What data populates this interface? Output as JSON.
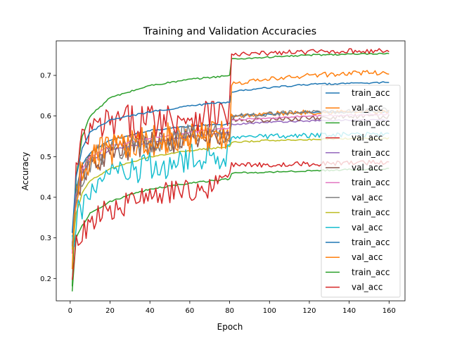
{
  "chart_data": {
    "type": "line",
    "title": "Training and Validation Accuracies",
    "xlabel": "Epoch",
    "ylabel": "Accuracy",
    "xlim": [
      -7,
      168
    ],
    "ylim": [
      0.145,
      0.785
    ],
    "xticks": [
      0,
      20,
      40,
      60,
      80,
      100,
      120,
      140,
      160
    ],
    "yticks": [
      0.2,
      0.3,
      0.4,
      0.5,
      0.6,
      0.7
    ],
    "ytick_labels": [
      "0.2",
      "0.3",
      "0.4",
      "0.5",
      "0.6",
      "0.7"
    ],
    "grid": false,
    "legend_position": "right",
    "series": [
      {
        "name": "train_acc",
        "color": "#1f77b4",
        "noise": 0.002,
        "anchors": [
          [
            1,
            0.27
          ],
          [
            3,
            0.42
          ],
          [
            6,
            0.48
          ],
          [
            10,
            0.51
          ],
          [
            20,
            0.54
          ],
          [
            40,
            0.565
          ],
          [
            60,
            0.575
          ],
          [
            80,
            0.58
          ],
          [
            81,
            0.6
          ],
          [
            100,
            0.605
          ],
          [
            120,
            0.61
          ],
          [
            140,
            0.61
          ],
          [
            160,
            0.61
          ]
        ]
      },
      {
        "name": "val_acc",
        "color": "#ff7f0e",
        "noise": 0.035,
        "anchors": [
          [
            1,
            0.27
          ],
          [
            3,
            0.4
          ],
          [
            6,
            0.46
          ],
          [
            10,
            0.49
          ],
          [
            20,
            0.52
          ],
          [
            40,
            0.535
          ],
          [
            60,
            0.55
          ],
          [
            80,
            0.56
          ],
          [
            81,
            0.6
          ],
          [
            100,
            0.605
          ],
          [
            120,
            0.61
          ],
          [
            140,
            0.61
          ],
          [
            160,
            0.61
          ]
        ]
      },
      {
        "name": "train_acc",
        "color": "#2ca02c",
        "noise": 0.002,
        "anchors": [
          [
            1,
            0.18
          ],
          [
            3,
            0.45
          ],
          [
            6,
            0.55
          ],
          [
            10,
            0.6
          ],
          [
            20,
            0.645
          ],
          [
            40,
            0.675
          ],
          [
            60,
            0.69
          ],
          [
            80,
            0.7
          ],
          [
            81,
            0.74
          ],
          [
            100,
            0.745
          ],
          [
            120,
            0.75
          ],
          [
            140,
            0.752
          ],
          [
            160,
            0.753
          ]
        ]
      },
      {
        "name": "val_acc",
        "color": "#d62728",
        "noise": 0.045,
        "anchors": [
          [
            1,
            0.26
          ],
          [
            3,
            0.46
          ],
          [
            6,
            0.53
          ],
          [
            10,
            0.56
          ],
          [
            20,
            0.58
          ],
          [
            40,
            0.59
          ],
          [
            60,
            0.6
          ],
          [
            80,
            0.61
          ],
          [
            81,
            0.75
          ],
          [
            100,
            0.755
          ],
          [
            120,
            0.758
          ],
          [
            140,
            0.76
          ],
          [
            160,
            0.76
          ]
        ]
      },
      {
        "name": "train_acc",
        "color": "#9467bd",
        "noise": 0.002,
        "anchors": [
          [
            1,
            0.26
          ],
          [
            3,
            0.4
          ],
          [
            6,
            0.46
          ],
          [
            10,
            0.49
          ],
          [
            20,
            0.515
          ],
          [
            40,
            0.535
          ],
          [
            60,
            0.55
          ],
          [
            80,
            0.56
          ],
          [
            81,
            0.58
          ],
          [
            100,
            0.585
          ],
          [
            120,
            0.588
          ],
          [
            140,
            0.59
          ],
          [
            160,
            0.59
          ]
        ]
      },
      {
        "name": "val_acc",
        "color": "#8c564b",
        "noise": 0.03,
        "anchors": [
          [
            1,
            0.26
          ],
          [
            3,
            0.39
          ],
          [
            6,
            0.45
          ],
          [
            10,
            0.48
          ],
          [
            20,
            0.505
          ],
          [
            40,
            0.53
          ],
          [
            60,
            0.545
          ],
          [
            80,
            0.55
          ],
          [
            81,
            0.59
          ],
          [
            100,
            0.59
          ],
          [
            120,
            0.595
          ],
          [
            140,
            0.598
          ],
          [
            160,
            0.6
          ]
        ]
      },
      {
        "name": "train_acc",
        "color": "#e377c2",
        "noise": 0.002,
        "anchors": [
          [
            1,
            0.26
          ],
          [
            3,
            0.41
          ],
          [
            6,
            0.47
          ],
          [
            10,
            0.5
          ],
          [
            20,
            0.525
          ],
          [
            40,
            0.545
          ],
          [
            60,
            0.56
          ],
          [
            80,
            0.57
          ],
          [
            81,
            0.59
          ],
          [
            100,
            0.595
          ],
          [
            120,
            0.6
          ],
          [
            140,
            0.602
          ],
          [
            160,
            0.605
          ]
        ]
      },
      {
        "name": "val_acc",
        "color": "#7f7f7f",
        "noise": 0.03,
        "anchors": [
          [
            1,
            0.26
          ],
          [
            3,
            0.4
          ],
          [
            6,
            0.455
          ],
          [
            10,
            0.49
          ],
          [
            20,
            0.515
          ],
          [
            40,
            0.535
          ],
          [
            60,
            0.55
          ],
          [
            80,
            0.56
          ],
          [
            81,
            0.6
          ],
          [
            100,
            0.605
          ],
          [
            120,
            0.61
          ],
          [
            140,
            0.612
          ],
          [
            160,
            0.615
          ]
        ]
      },
      {
        "name": "train_acc",
        "color": "#bcbd22",
        "noise": 0.002,
        "anchors": [
          [
            1,
            0.27
          ],
          [
            3,
            0.36
          ],
          [
            6,
            0.41
          ],
          [
            10,
            0.44
          ],
          [
            20,
            0.47
          ],
          [
            40,
            0.5
          ],
          [
            60,
            0.515
          ],
          [
            80,
            0.525
          ],
          [
            81,
            0.535
          ],
          [
            100,
            0.54
          ],
          [
            120,
            0.542
          ],
          [
            140,
            0.545
          ],
          [
            160,
            0.545
          ]
        ]
      },
      {
        "name": "val_acc",
        "color": "#17becf",
        "noise": 0.04,
        "anchors": [
          [
            1,
            0.27
          ],
          [
            3,
            0.34
          ],
          [
            6,
            0.38
          ],
          [
            10,
            0.42
          ],
          [
            20,
            0.45
          ],
          [
            40,
            0.47
          ],
          [
            60,
            0.49
          ],
          [
            80,
            0.51
          ],
          [
            81,
            0.55
          ],
          [
            100,
            0.55
          ],
          [
            120,
            0.552
          ],
          [
            140,
            0.555
          ],
          [
            160,
            0.555
          ]
        ]
      },
      {
        "name": "train_acc",
        "color": "#1f77b4",
        "noise": 0.002,
        "anchors": [
          [
            1,
            0.31
          ],
          [
            3,
            0.45
          ],
          [
            6,
            0.52
          ],
          [
            10,
            0.56
          ],
          [
            20,
            0.59
          ],
          [
            40,
            0.61
          ],
          [
            60,
            0.625
          ],
          [
            80,
            0.635
          ],
          [
            81,
            0.66
          ],
          [
            100,
            0.67
          ],
          [
            120,
            0.678
          ],
          [
            140,
            0.68
          ],
          [
            160,
            0.683
          ]
        ]
      },
      {
        "name": "val_acc",
        "color": "#ff7f0e",
        "noise": 0.04,
        "anchors": [
          [
            1,
            0.26
          ],
          [
            3,
            0.41
          ],
          [
            6,
            0.47
          ],
          [
            10,
            0.5
          ],
          [
            20,
            0.52
          ],
          [
            40,
            0.54
          ],
          [
            60,
            0.55
          ],
          [
            80,
            0.56
          ],
          [
            81,
            0.68
          ],
          [
            100,
            0.69
          ],
          [
            120,
            0.7
          ],
          [
            140,
            0.705
          ],
          [
            160,
            0.708
          ]
        ]
      },
      {
        "name": "train_acc",
        "color": "#2ca02c",
        "noise": 0.002,
        "anchors": [
          [
            1,
            0.17
          ],
          [
            3,
            0.3
          ],
          [
            6,
            0.33
          ],
          [
            10,
            0.36
          ],
          [
            20,
            0.39
          ],
          [
            40,
            0.42
          ],
          [
            60,
            0.435
          ],
          [
            80,
            0.445
          ],
          [
            81,
            0.46
          ],
          [
            100,
            0.462
          ],
          [
            120,
            0.465
          ],
          [
            140,
            0.468
          ],
          [
            160,
            0.47
          ]
        ]
      },
      {
        "name": "val_acc",
        "color": "#d62728",
        "noise": 0.03,
        "anchors": [
          [
            1,
            0.22
          ],
          [
            3,
            0.28
          ],
          [
            6,
            0.31
          ],
          [
            10,
            0.34
          ],
          [
            20,
            0.37
          ],
          [
            40,
            0.4
          ],
          [
            60,
            0.42
          ],
          [
            80,
            0.43
          ],
          [
            81,
            0.48
          ],
          [
            100,
            0.48
          ],
          [
            120,
            0.482
          ],
          [
            140,
            0.485
          ],
          [
            160,
            0.487
          ]
        ]
      }
    ]
  }
}
